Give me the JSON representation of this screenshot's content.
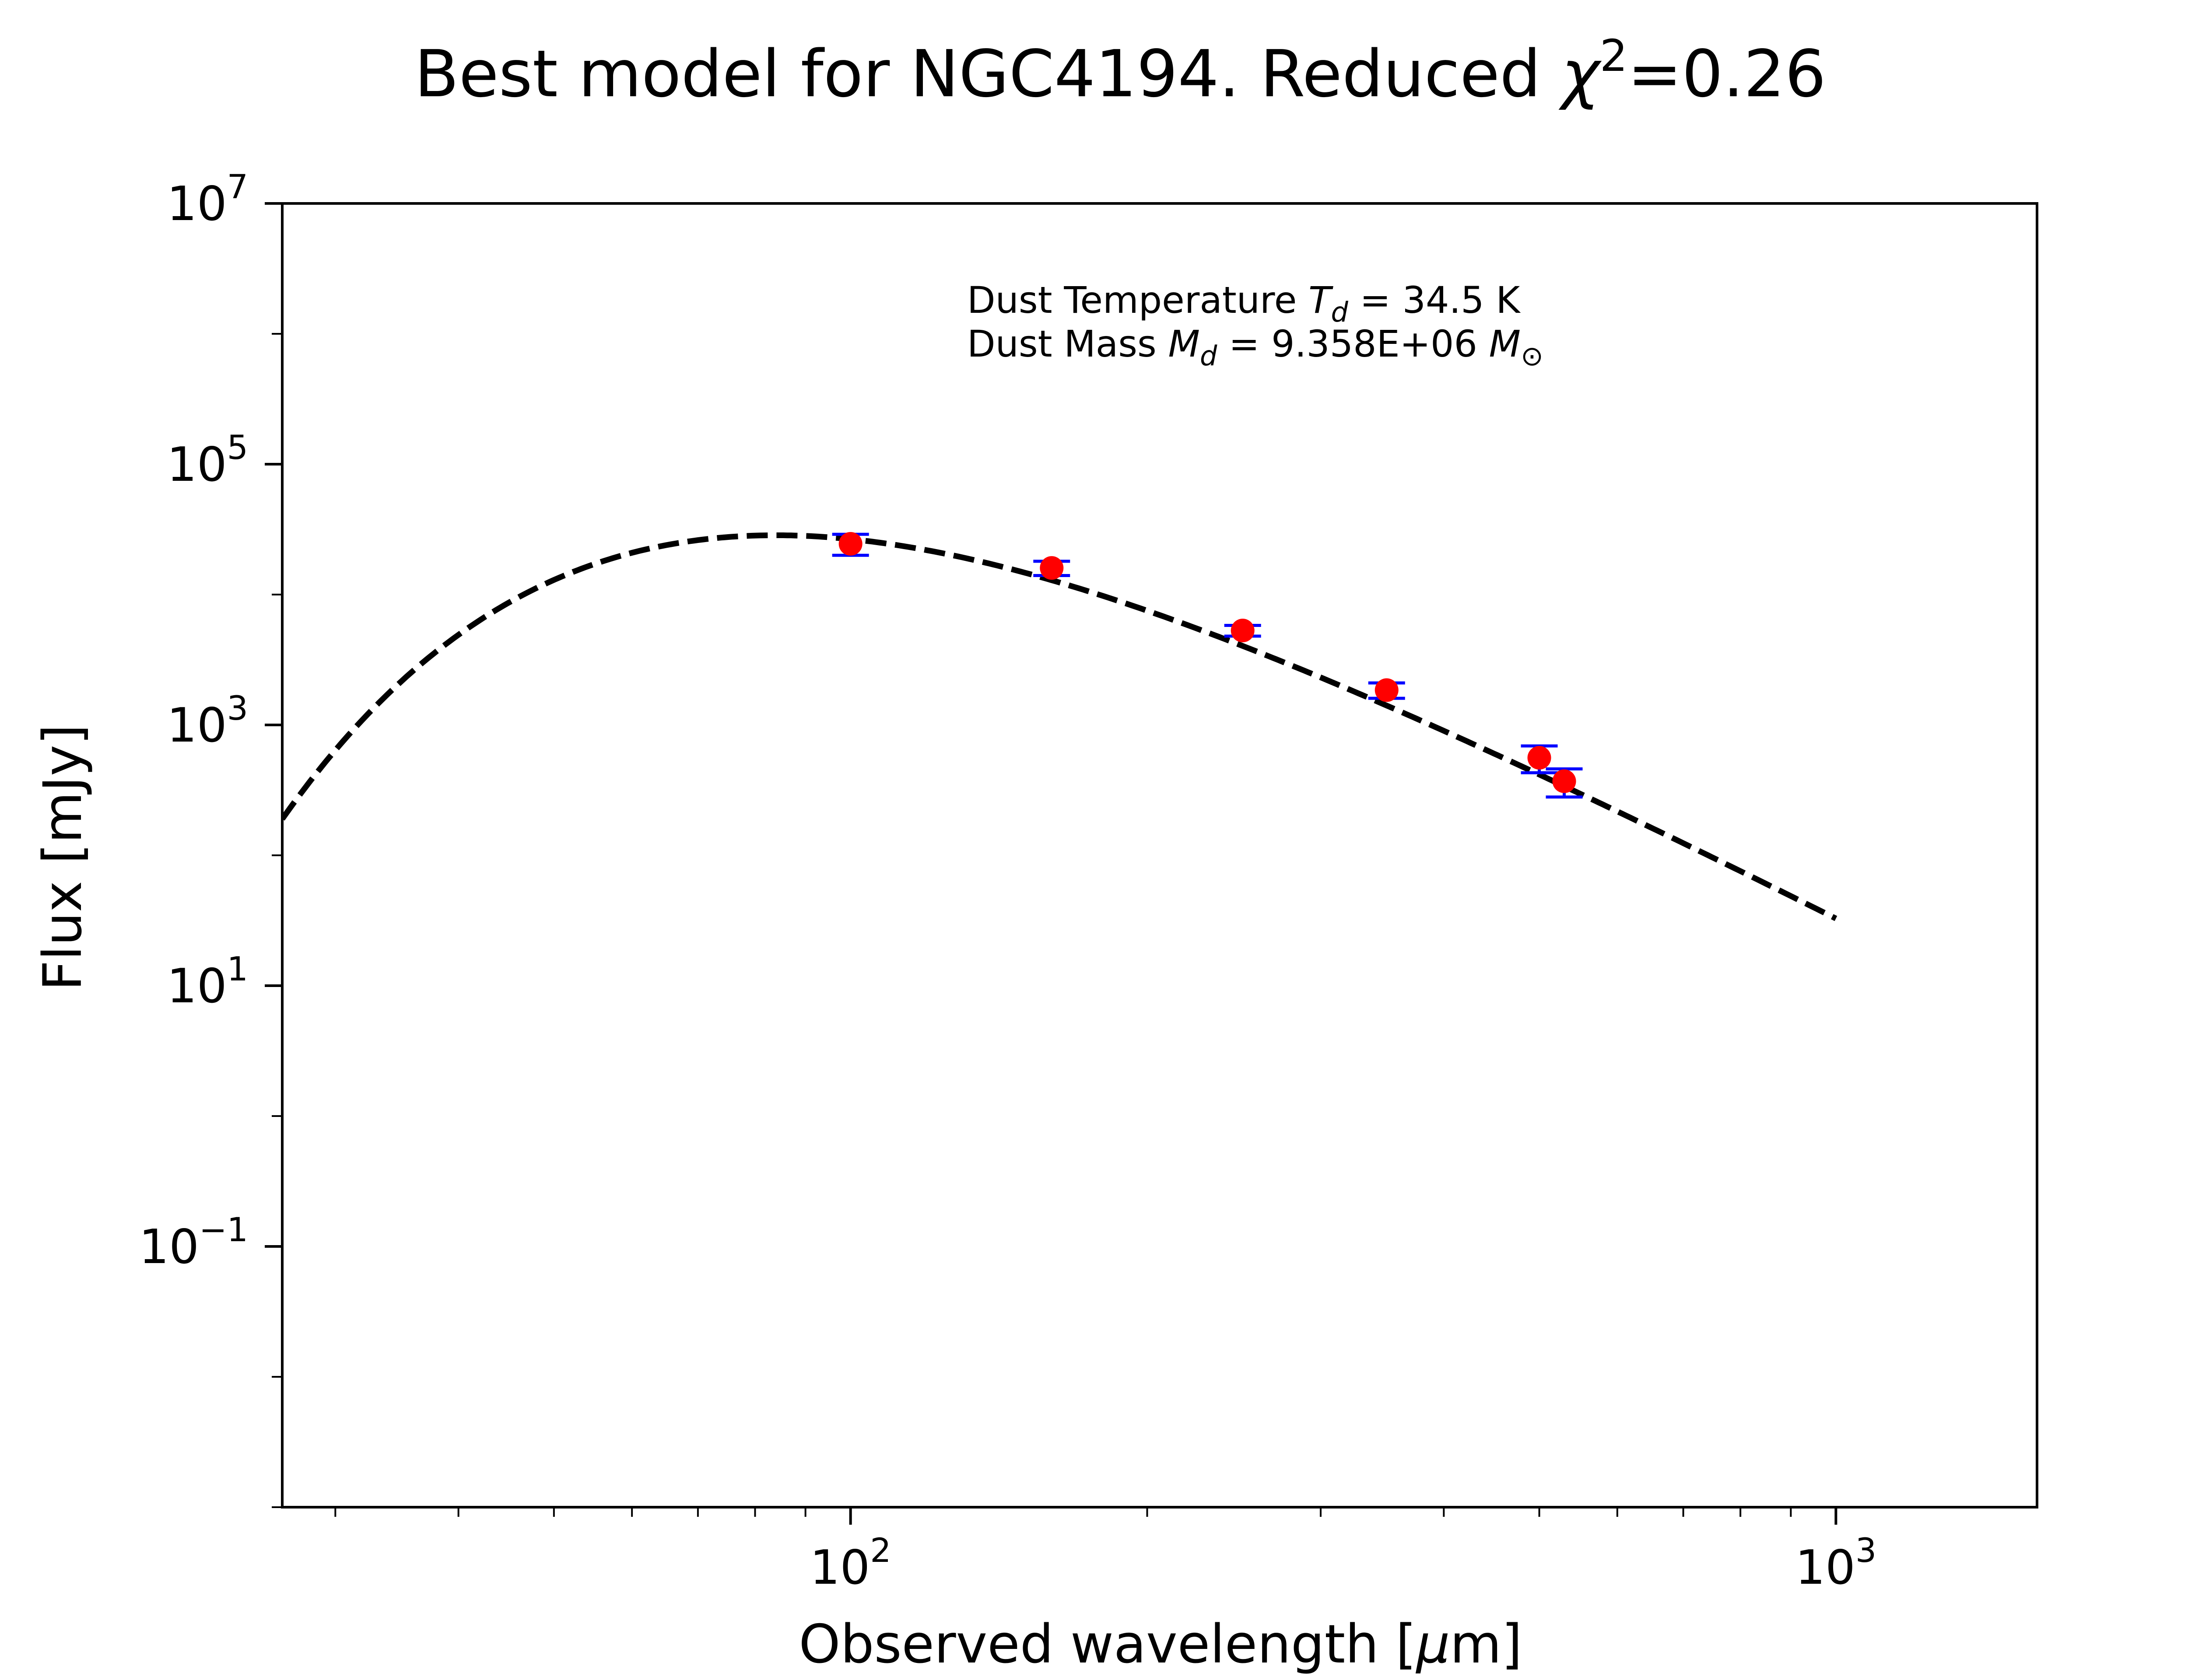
{
  "chart_data": {
    "type": "scatter",
    "title_prefix": "Best model for NGC4194. Reduced ",
    "title_chi": "χ",
    "title_sup": "2",
    "title_suffix": "=0.26",
    "xlabel_prefix": "Observed wavelength [",
    "xlabel_mu": "μ",
    "xlabel_suffix": "m]",
    "ylabel": "Flux [mJy]",
    "x_scale": "log",
    "y_scale": "log",
    "xlim": [
      26.5,
      1600
    ],
    "ylim": [
      0.001,
      10000000
    ],
    "x_ticks": [
      {
        "value": 100,
        "base": "10",
        "exp": "2"
      },
      {
        "value": 1000,
        "base": "10",
        "exp": "3"
      }
    ],
    "y_ticks": [
      {
        "value": 0.1,
        "base": "10",
        "exp": "−1"
      },
      {
        "value": 10,
        "base": "10",
        "exp": "1"
      },
      {
        "value": 1000,
        "base": "10",
        "exp": "3"
      },
      {
        "value": 100000,
        "base": "10",
        "exp": "5"
      },
      {
        "value": 10000000,
        "base": "10",
        "exp": "7"
      }
    ],
    "annotation": {
      "line1_prefix": "Dust Temperature ",
      "line1_sym": "T",
      "line1_sub": "d",
      "line1_suffix": " = 34.5 K",
      "line2_prefix": "Dust Mass ",
      "line2_sym": "M",
      "line2_sub": "d",
      "line2_mid": " = 9.358E+06 ",
      "line2_unit": "M",
      "line2_unit_sub": "⊙"
    },
    "model": {
      "name": "",
      "style": "dashed",
      "color": "#000000",
      "T_dust": 34.5,
      "beta": 2.0,
      "peak_flux": 28500,
      "x_range": [
        26.5,
        1000
      ]
    },
    "series": [
      {
        "name": "",
        "marker_color": "#ff0000",
        "errorbar_color": "#0000ff",
        "x": [
          100,
          160,
          250,
          350,
          500,
          530
        ],
        "y": [
          24500,
          16000,
          5300,
          1850,
          560,
          370
        ],
        "yerr_low": [
          4500,
          2000,
          500,
          250,
          130,
          90
        ],
        "yerr_high": [
          4500,
          2000,
          500,
          250,
          130,
          90
        ]
      }
    ],
    "grid": false,
    "legend": "none"
  }
}
